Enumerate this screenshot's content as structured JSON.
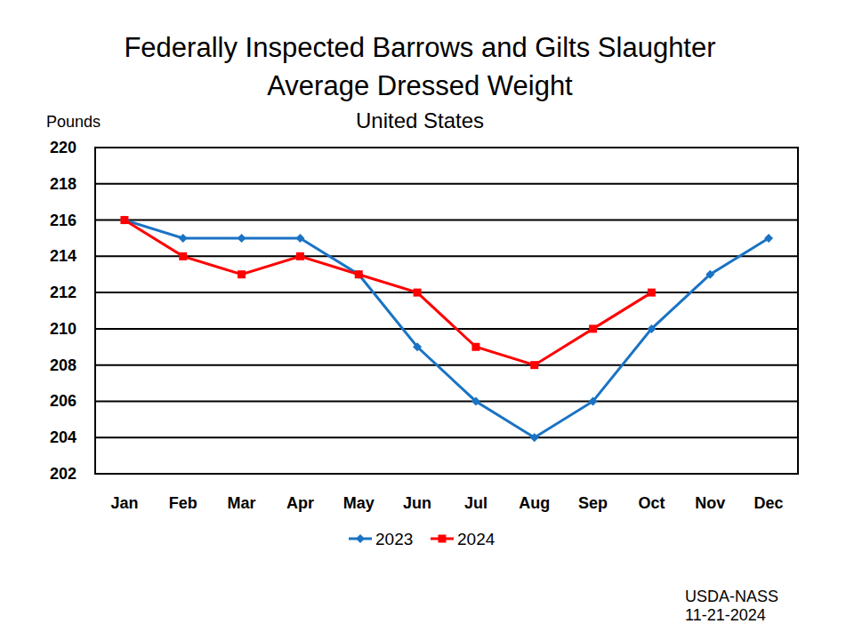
{
  "chart_data": {
    "type": "line",
    "title": [
      "Federally Inspected Barrows and Gilts Slaughter",
      "Average Dressed Weight"
    ],
    "subtitle": "United States",
    "y_label": "Pounds",
    "annotations": [
      "USDA-NASS",
      "11-21-2024"
    ],
    "categories": [
      "Jan",
      "Feb",
      "Mar",
      "Apr",
      "May",
      "Jun",
      "Jul",
      "Aug",
      "Sep",
      "Oct",
      "Nov",
      "Dec"
    ],
    "series": [
      {
        "name": "2023",
        "color": "#1a73c4",
        "marker": "diamond",
        "values": [
          216,
          215,
          215,
          215,
          213,
          209,
          206,
          204,
          206,
          210,
          213,
          215
        ]
      },
      {
        "name": "2024",
        "color": "#ff0000",
        "marker": "square",
        "values": [
          216,
          214,
          213,
          214,
          213,
          212,
          209,
          208,
          210,
          212,
          null,
          null
        ]
      }
    ],
    "ylim": [
      202,
      220
    ],
    "yticks": [
      202,
      204,
      206,
      208,
      210,
      212,
      214,
      216,
      218,
      220
    ],
    "grid": true,
    "legend": "bottom"
  }
}
